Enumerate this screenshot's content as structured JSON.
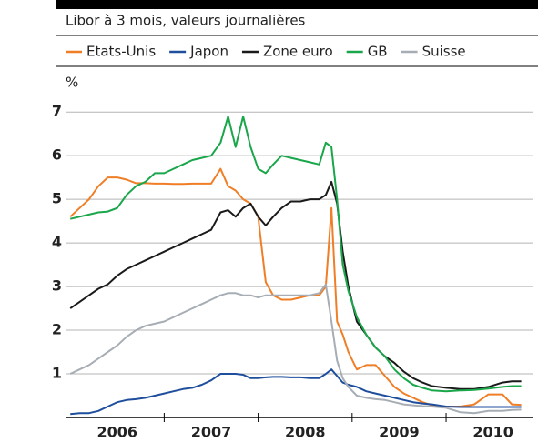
{
  "chart_data": {
    "type": "line",
    "subtitle": "Libor à 3 mois, valeurs journalières",
    "y_label": "%",
    "x": [
      2006.0,
      2006.1,
      2006.2,
      2006.3,
      2006.4,
      2006.5,
      2006.6,
      2006.7,
      2006.8,
      2006.9,
      2007.0,
      2007.1,
      2007.2,
      2007.3,
      2007.4,
      2007.5,
      2007.6,
      2007.68,
      2007.76,
      2007.84,
      2007.92,
      2008.0,
      2008.08,
      2008.16,
      2008.25,
      2008.35,
      2008.45,
      2008.55,
      2008.65,
      2008.72,
      2008.78,
      2008.84,
      2008.9,
      2008.96,
      2009.05,
      2009.15,
      2009.25,
      2009.35,
      2009.45,
      2009.55,
      2009.65,
      2009.75,
      2009.85,
      2010.0,
      2010.15,
      2010.3,
      2010.45,
      2010.6,
      2010.7,
      2010.8
    ],
    "series": [
      {
        "name": "Etats-Unis",
        "color": "#f07e26",
        "values": [
          4.6,
          4.8,
          5.0,
          5.3,
          5.5,
          5.5,
          5.45,
          5.37,
          5.37,
          5.36,
          5.36,
          5.35,
          5.35,
          5.36,
          5.36,
          5.36,
          5.7,
          5.3,
          5.2,
          5.0,
          4.9,
          4.6,
          3.1,
          2.8,
          2.7,
          2.7,
          2.75,
          2.8,
          2.8,
          3.0,
          4.8,
          2.2,
          1.9,
          1.5,
          1.1,
          1.2,
          1.2,
          0.95,
          0.7,
          0.55,
          0.45,
          0.35,
          0.28,
          0.25,
          0.25,
          0.3,
          0.53,
          0.53,
          0.3,
          0.29
        ]
      },
      {
        "name": "Japon",
        "color": "#1f4e9c",
        "values": [
          0.08,
          0.1,
          0.1,
          0.15,
          0.25,
          0.35,
          0.4,
          0.42,
          0.45,
          0.5,
          0.55,
          0.6,
          0.65,
          0.68,
          0.75,
          0.85,
          1.0,
          1.0,
          1.0,
          0.98,
          0.9,
          0.9,
          0.92,
          0.93,
          0.93,
          0.92,
          0.92,
          0.9,
          0.9,
          1.0,
          1.1,
          0.95,
          0.8,
          0.75,
          0.7,
          0.6,
          0.55,
          0.5,
          0.45,
          0.4,
          0.35,
          0.32,
          0.3,
          0.25,
          0.24,
          0.24,
          0.24,
          0.24,
          0.24,
          0.24
        ]
      },
      {
        "name": "Zone euro",
        "color": "#1a1a1a",
        "values": [
          2.5,
          2.65,
          2.8,
          2.95,
          3.05,
          3.25,
          3.4,
          3.5,
          3.6,
          3.7,
          3.8,
          3.9,
          4.0,
          4.1,
          4.2,
          4.3,
          4.7,
          4.75,
          4.6,
          4.8,
          4.9,
          4.6,
          4.4,
          4.6,
          4.8,
          4.95,
          4.95,
          5.0,
          5.0,
          5.1,
          5.4,
          4.9,
          3.8,
          3.0,
          2.2,
          1.9,
          1.6,
          1.4,
          1.25,
          1.05,
          0.9,
          0.8,
          0.72,
          0.68,
          0.65,
          0.65,
          0.7,
          0.8,
          0.83,
          0.83
        ]
      },
      {
        "name": "GB",
        "color": "#1aa64a",
        "values": [
          4.55,
          4.6,
          4.65,
          4.7,
          4.72,
          4.8,
          5.1,
          5.3,
          5.4,
          5.6,
          5.6,
          5.7,
          5.8,
          5.9,
          5.95,
          6.0,
          6.3,
          6.9,
          6.2,
          6.9,
          6.2,
          5.7,
          5.6,
          5.8,
          6.0,
          5.95,
          5.9,
          5.85,
          5.8,
          6.3,
          6.2,
          5.0,
          3.5,
          2.9,
          2.3,
          1.9,
          1.6,
          1.4,
          1.1,
          0.9,
          0.75,
          0.68,
          0.62,
          0.6,
          0.62,
          0.63,
          0.66,
          0.7,
          0.72,
          0.72
        ]
      },
      {
        "name": "Suisse",
        "color": "#a7adb4",
        "values": [
          1.0,
          1.1,
          1.2,
          1.35,
          1.5,
          1.65,
          1.85,
          2.0,
          2.1,
          2.15,
          2.2,
          2.3,
          2.4,
          2.5,
          2.6,
          2.7,
          2.8,
          2.85,
          2.85,
          2.8,
          2.8,
          2.75,
          2.8,
          2.8,
          2.8,
          2.8,
          2.8,
          2.8,
          2.85,
          3.05,
          2.2,
          1.3,
          0.9,
          0.7,
          0.5,
          0.45,
          0.42,
          0.4,
          0.35,
          0.3,
          0.28,
          0.26,
          0.25,
          0.22,
          0.12,
          0.1,
          0.15,
          0.15,
          0.17,
          0.18
        ]
      }
    ],
    "xlim": [
      2005.95,
      2010.92
    ],
    "xticks": [
      {
        "value": 2006.5,
        "label": "2006"
      },
      {
        "value": 2007.5,
        "label": "2007"
      },
      {
        "value": 2008.5,
        "label": "2008"
      },
      {
        "value": 2009.5,
        "label": "2009"
      },
      {
        "value": 2010.5,
        "label": "2010"
      }
    ],
    "ylim": [
      0,
      7.4
    ],
    "yticks": [
      1,
      2,
      3,
      4,
      5,
      6,
      7
    ],
    "grid": true
  }
}
